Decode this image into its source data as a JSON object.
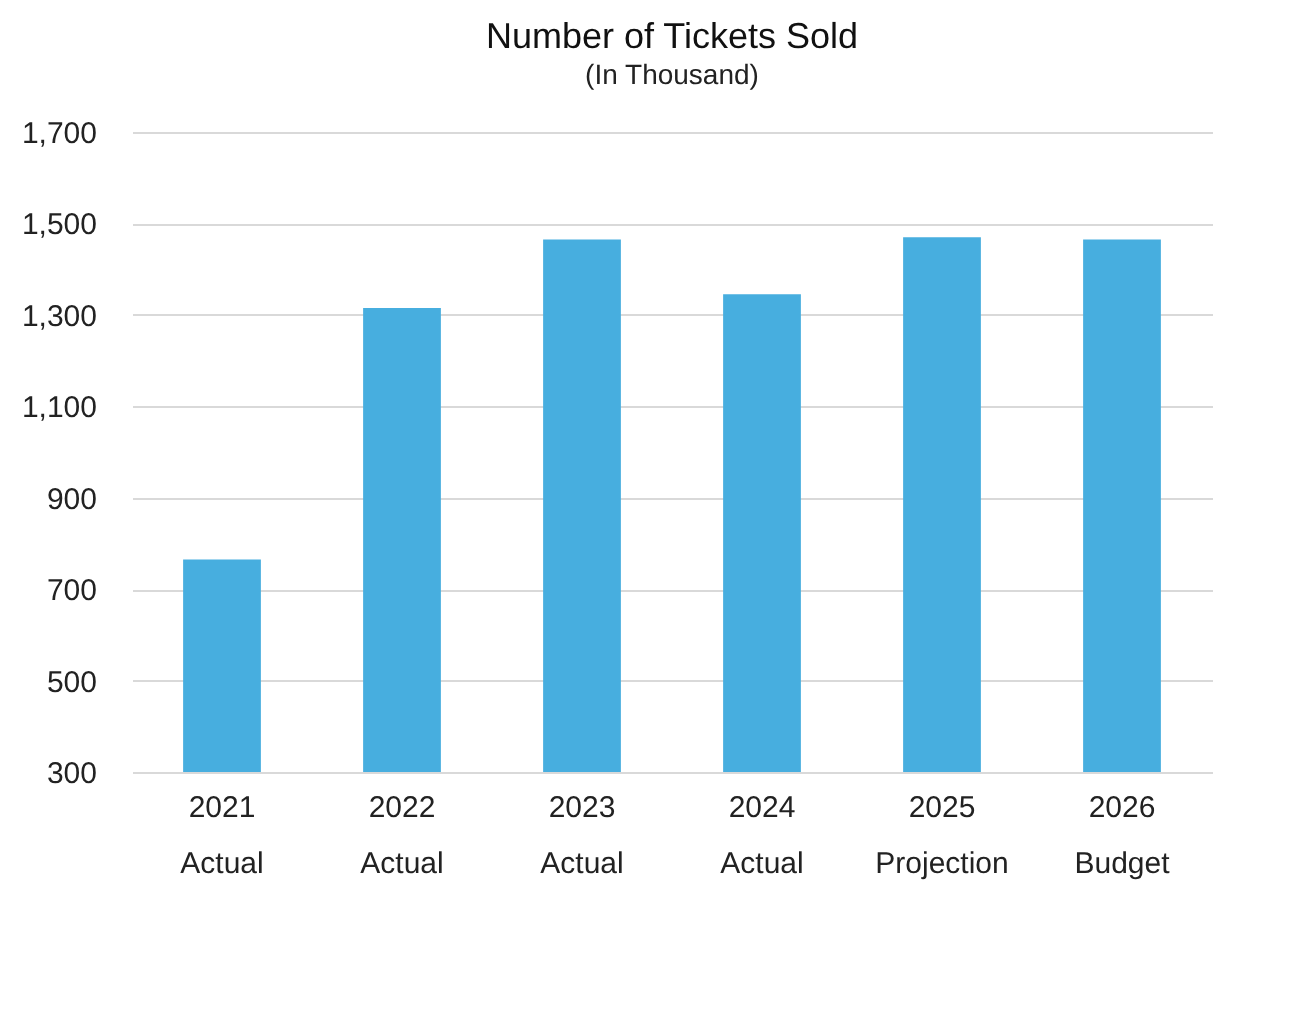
{
  "chart_data": {
    "type": "bar",
    "title": "Number of Tickets Sold",
    "subtitle": "(In Thousand)",
    "categories": [
      "2021\nActual",
      "2022\nActual",
      "2023\nActual",
      "2024\nActual",
      "2025\nProjection",
      "2026\nBudget"
    ],
    "values": [
      765,
      1315,
      1465,
      1345,
      1470,
      1465
    ],
    "color": "#47aedf",
    "ylim": [
      300,
      1700
    ],
    "yticks": [
      300,
      500,
      700,
      900,
      {
        "value": 1100,
        "label": "1,100"
      },
      {
        "value": 1300,
        "label": "1,300"
      },
      {
        "value": 1500,
        "label": "1,500"
      },
      {
        "value": 1700,
        "label": "1,700"
      }
    ],
    "grid": "y"
  }
}
